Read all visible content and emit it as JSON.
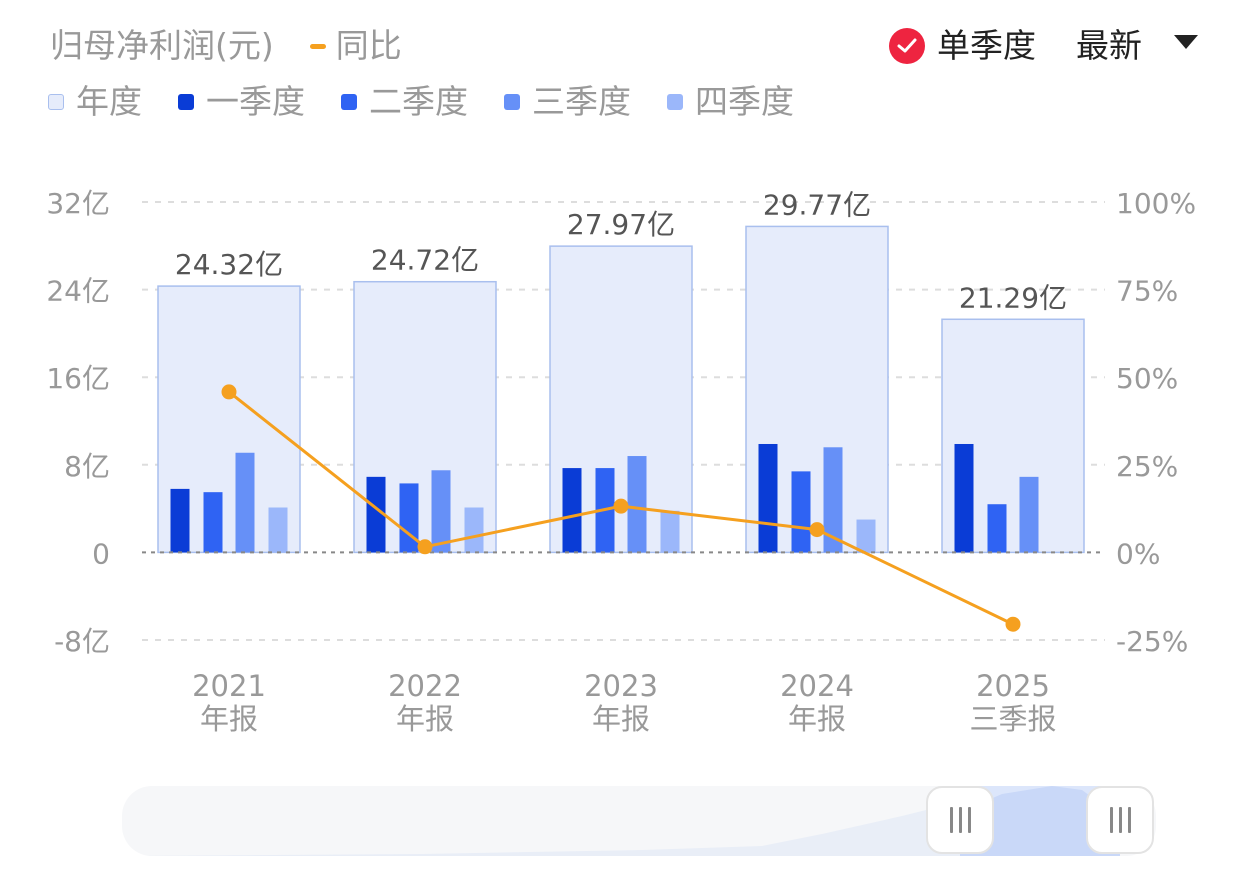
{
  "header": {
    "metric_label": "归母净利润(元)",
    "line_legend_label": "同比",
    "toggle_label": "单季度",
    "toggle_checked": true,
    "dropdown_label": "最新"
  },
  "legend": {
    "items": [
      {
        "label": "年度",
        "color": "#e6ecfb"
      },
      {
        "label": "一季度",
        "color": "#0a3cd6"
      },
      {
        "label": "二季度",
        "color": "#2f63f3"
      },
      {
        "label": "三季度",
        "color": "#6690f7"
      },
      {
        "label": "四季度",
        "color": "#9bb7fa"
      }
    ]
  },
  "colors": {
    "annual_fill": "#e6ecfb",
    "annual_border": "#a9bfee",
    "line": "#f5a01f",
    "accent_red": "#ee2440",
    "grid": "#dddddd",
    "axis_text": "#999999",
    "value_label": "#555555"
  },
  "chart_data": {
    "type": "bar",
    "categories": [
      "2021 年报",
      "2022 年报",
      "2023 年报",
      "2024 年报",
      "2025 三季报"
    ],
    "category_lines": [
      [
        "2021",
        "年报"
      ],
      [
        "2022",
        "年报"
      ],
      [
        "2023",
        "年报"
      ],
      [
        "2024",
        "年报"
      ],
      [
        "2025",
        "三季报"
      ]
    ],
    "annual": {
      "name": "年度",
      "values": [
        24.32,
        24.72,
        27.97,
        29.77,
        21.29
      ],
      "labels": [
        "24.32亿",
        "24.72亿",
        "27.97亿",
        "29.77亿",
        "21.29亿"
      ]
    },
    "series": [
      {
        "name": "一季度",
        "values": [
          5.8,
          6.9,
          7.7,
          9.9,
          9.9
        ]
      },
      {
        "name": "二季度",
        "values": [
          5.5,
          6.3,
          7.7,
          7.4,
          4.4
        ]
      },
      {
        "name": "三季度",
        "values": [
          9.1,
          7.5,
          8.8,
          9.6,
          6.9
        ]
      },
      {
        "name": "四季度",
        "values": [
          4.1,
          4.1,
          3.8,
          3.0,
          null
        ]
      }
    ],
    "yoy": {
      "name": "同比",
      "values": [
        45.8,
        1.6,
        13.2,
        6.5,
        -20.5
      ]
    },
    "y_left": {
      "ticks": [
        32,
        24,
        16,
        8,
        0,
        -8
      ],
      "tick_labels": [
        "32亿",
        "24亿",
        "16亿",
        "8亿",
        "0",
        "-8亿"
      ],
      "ylim": [
        -8,
        32
      ]
    },
    "y_right": {
      "ticks": [
        100,
        75,
        50,
        25,
        0,
        -25
      ],
      "tick_labels": [
        "100%",
        "75%",
        "50%",
        "25%",
        "0%",
        "-25%"
      ],
      "ylim": [
        -25,
        100
      ]
    },
    "grid": true
  }
}
